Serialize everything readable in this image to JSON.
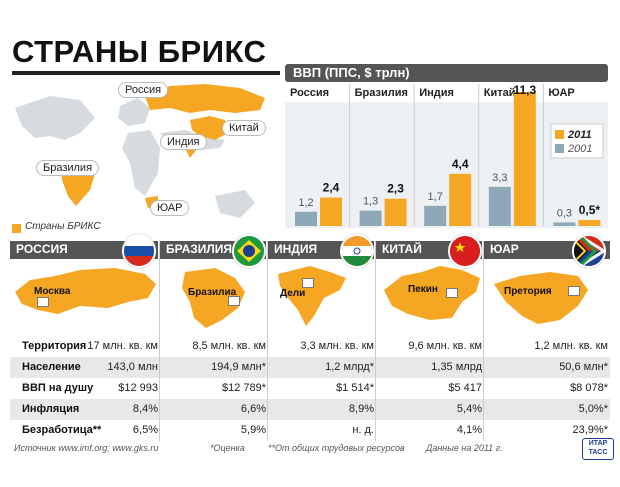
{
  "title": "СТРАНЫ БРИКС",
  "map": {
    "labels": [
      "Россия",
      "Китай",
      "Индия",
      "Бразилия",
      "ЮАР"
    ],
    "legend": "Страны БРИКС"
  },
  "colors": {
    "accent": "#f5a623",
    "series2001": "#8ea8b8",
    "band": "#555555"
  },
  "chart_data": {
    "type": "bar",
    "title": "ВВП (ППС, $ трлн)",
    "categories": [
      "Россия",
      "Бразилия",
      "Индия",
      "Китай",
      "ЮАР"
    ],
    "series": [
      {
        "name": "2001",
        "values": [
          1.2,
          1.3,
          1.7,
          3.3,
          0.3
        ],
        "labels": [
          "1,2",
          "1,3",
          "1,7",
          "3,3",
          "0,3"
        ]
      },
      {
        "name": "2011",
        "values": [
          2.4,
          2.3,
          4.4,
          11.3,
          0.5
        ],
        "labels": [
          "2,4",
          "2,3",
          "4,4",
          "11,3",
          "0,5*"
        ]
      }
    ],
    "legend_position": "right",
    "ylim": [
      0,
      11.3
    ]
  },
  "countries": [
    {
      "name": "РОССИЯ",
      "capital": "Москва"
    },
    {
      "name": "БРАЗИЛИЯ",
      "capital": "Бразилиа"
    },
    {
      "name": "ИНДИЯ",
      "capital": "Дели"
    },
    {
      "name": "КИТАЙ",
      "capital": "Пекин"
    },
    {
      "name": "ЮАР",
      "capital": "Претория"
    }
  ],
  "table": {
    "rows": [
      {
        "label": "Территория",
        "values": [
          "17 млн. кв. км",
          "8,5 млн. кв. км",
          "3,3 млн. кв. км",
          "9,6 млн. кв. км",
          "1,2 млн. кв. км"
        ]
      },
      {
        "label": "Население",
        "values": [
          "143,0 млн",
          "194,9 млн*",
          "1,2 млрд*",
          "1,35 млрд",
          "50,6 млн*"
        ]
      },
      {
        "label": "ВВП на душу",
        "values": [
          "$12 993",
          "$12 789*",
          "$1 514*",
          "$5 417",
          "$8 078*"
        ]
      },
      {
        "label": "Инфляция",
        "values": [
          "8,4%",
          "6,6%",
          "8,9%",
          "5,4%",
          "5,0%*"
        ]
      },
      {
        "label": "Безработица**",
        "values": [
          "6,5%",
          "5,9%",
          "н. д.",
          "4,1%",
          "23,9%*"
        ]
      }
    ]
  },
  "footer": {
    "source": "Источник www.imf.org; www.gks.ru",
    "note1": "*Оценка",
    "note2": "**От общих трудовых ресурсов",
    "date": "Данные на 2011 г.",
    "logo": "ИТАР ТАСС"
  }
}
